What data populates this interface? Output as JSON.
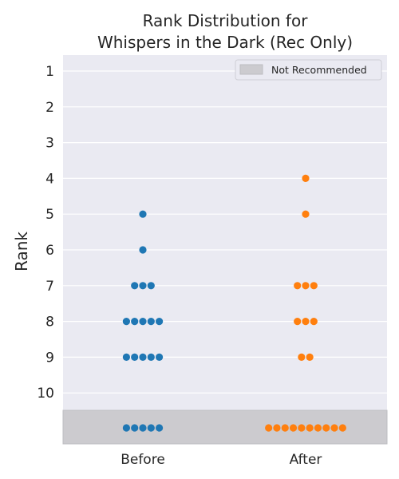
{
  "chart_data": {
    "type": "scatter",
    "title": "Rank Distribution for\nWhispers in the Dark (Rec Only)",
    "ylabel": "Rank",
    "xlabel": "",
    "categories": [
      "Before",
      "After"
    ],
    "ylim": [
      1,
      10
    ],
    "y_inverted": true,
    "yticks": [
      "1",
      "2",
      "3",
      "4",
      "5",
      "6",
      "7",
      "8",
      "9",
      "10"
    ],
    "grid": true,
    "legend": {
      "position": "top-right",
      "entries": [
        "Not Recommended"
      ]
    },
    "not_recommended_band": {
      "label": "Not Recommended"
    },
    "series": [
      {
        "category": "Before",
        "color": "#1f77b4",
        "rank_counts": {
          "5": 1,
          "6": 1,
          "7": 3,
          "8": 5,
          "9": 5
        },
        "not_recommended_count": 5
      },
      {
        "category": "After",
        "color": "#ff7f0e",
        "rank_counts": {
          "4": 1,
          "5": 1,
          "7": 3,
          "8": 3,
          "9": 2
        },
        "not_recommended_count": 10
      }
    ],
    "colors": {
      "plot_background": "#eaeaf2",
      "grid": "#ffffff",
      "band": "#cccbcf",
      "text": "#262626"
    }
  }
}
